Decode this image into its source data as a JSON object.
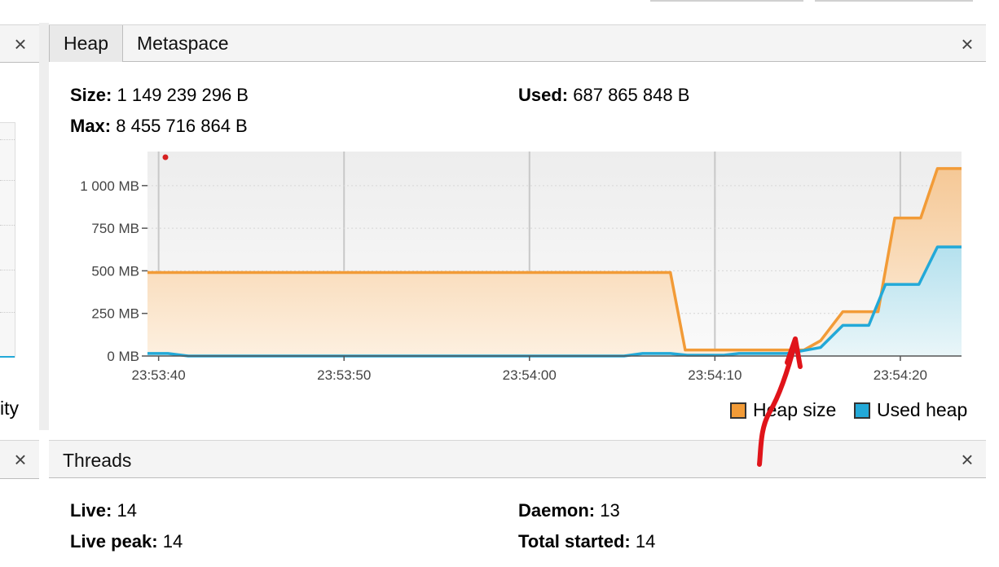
{
  "heap_panel": {
    "tabs": [
      {
        "label": "Heap"
      },
      {
        "label": "Metaspace"
      }
    ],
    "size_label": "Size:",
    "size_value": "1 149 239 296 B",
    "used_label": "Used:",
    "used_value": "687 865 848 B",
    "max_label": "Max:",
    "max_value": "8 455 716 864 B"
  },
  "left_panel": {
    "clipped_text": "ity"
  },
  "chart_data": {
    "type": "area",
    "title": "",
    "y_ticks": [
      "0 MB",
      "250 MB",
      "500 MB",
      "750 MB",
      "1 000 MB"
    ],
    "y_tick_values": [
      0,
      250,
      500,
      750,
      1000
    ],
    "x_ticks": [
      "23:53:40",
      "23:53:50",
      "23:54:00",
      "23:54:10",
      "23:54:20"
    ],
    "x_tick_values": [
      0,
      10,
      20,
      30,
      40
    ],
    "ylim": [
      0,
      1200
    ],
    "xlim": [
      -0.6,
      43.3
    ],
    "series": [
      {
        "name": "Heap size",
        "color": "#f29b37",
        "points": [
          [
            -0.6,
            490
          ],
          [
            27.6,
            490
          ],
          [
            28.4,
            35
          ],
          [
            34.8,
            35
          ],
          [
            35.7,
            90
          ],
          [
            36.9,
            260
          ],
          [
            38.8,
            260
          ],
          [
            39.7,
            810
          ],
          [
            41.1,
            810
          ],
          [
            42.0,
            1100
          ],
          [
            43.3,
            1100
          ]
        ]
      },
      {
        "name": "Used heap",
        "color": "#23a9d8",
        "points": [
          [
            -0.6,
            15
          ],
          [
            0.5,
            15
          ],
          [
            1.6,
            0
          ],
          [
            25.1,
            0
          ],
          [
            26.1,
            15
          ],
          [
            27.6,
            15
          ],
          [
            28.5,
            5
          ],
          [
            30.5,
            5
          ],
          [
            31.3,
            15
          ],
          [
            33.9,
            15
          ],
          [
            35.7,
            50
          ],
          [
            36.9,
            180
          ],
          [
            38.3,
            180
          ],
          [
            39.2,
            420
          ],
          [
            41.0,
            420
          ],
          [
            42.0,
            640
          ],
          [
            43.3,
            640
          ]
        ]
      }
    ],
    "legend": [
      {
        "label": "Heap size",
        "color": "#f29b37"
      },
      {
        "label": "Used heap",
        "color": "#23a9d8"
      }
    ]
  },
  "threads_panel": {
    "title": "Threads",
    "live_label": "Live:",
    "live_value": "14",
    "daemon_label": "Daemon:",
    "daemon_value": "13",
    "live_peak_label": "Live peak:",
    "live_peak_value": "14",
    "total_started_label": "Total started:",
    "total_started_value": "14"
  },
  "icons": {
    "close": "×"
  }
}
